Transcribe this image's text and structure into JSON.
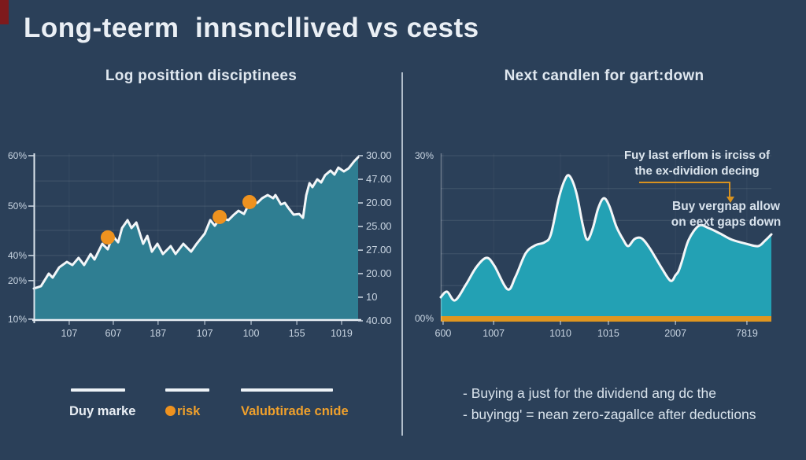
{
  "page": {
    "title": "Long-teerm  innsncllived vs cests"
  },
  "colors": {
    "background": "#2b4059",
    "accent_orange": "#ee921f",
    "left_area_fill": "#2f7e92",
    "right_area_fill": "#23a1b4",
    "line_white": "#f3f6f8",
    "corner_mark_red": "#7e1a1c"
  },
  "left_panel": {
    "subtitle": "Log posittion disciptinees",
    "legend": [
      {
        "label": "Duy marke"
      },
      {
        "label": "risk"
      },
      {
        "label": "Valubtirade cnide"
      }
    ]
  },
  "right_panel": {
    "subtitle": "Next candlen for gart:down",
    "note1_line1": "Fuy last erflom is irciss of",
    "note1_line2": "the ex-dividion decing",
    "note2_line1": "Buy vergnap allow",
    "note2_line2": "on eext gaps down",
    "bullets": [
      "- Buying a just for the dividend ang dc the",
      "- buyingg' = nean zero-zagallce after deductions"
    ]
  },
  "chart_data": [
    {
      "type": "area",
      "title": "Log posittion disciptinees",
      "smooth": false,
      "fill": "#2f7e92",
      "stroke": "#f3f6f8",
      "marker_color": "#ee921f",
      "legend_position": "bottom",
      "grid": true,
      "y_ticks_left": [
        {
          "label": "60%",
          "pos": 0.014
        },
        {
          "label": "50%",
          "pos": 0.315
        },
        {
          "label": "40%",
          "pos": 0.61
        },
        {
          "label": "20%",
          "pos": 0.76
        },
        {
          "label": "10%",
          "pos": 0.99
        }
      ],
      "y_ticks_right": [
        {
          "label": "30.00",
          "pos": 0.014
        },
        {
          "label": "47.00",
          "pos": 0.155
        },
        {
          "label": "20.00",
          "pos": 0.296
        },
        {
          "label": "25.00",
          "pos": 0.437
        },
        {
          "label": "27.00",
          "pos": 0.578
        },
        {
          "label": "20.00",
          "pos": 0.718
        },
        {
          "label": "10",
          "pos": 0.859
        },
        {
          "label": "40.00",
          "pos": 1.0
        }
      ],
      "x_ticks": [
        {
          "label": "107",
          "pos": 0.109
        },
        {
          "label": "607",
          "pos": 0.245
        },
        {
          "label": "187",
          "pos": 0.383
        },
        {
          "label": "107",
          "pos": 0.527
        },
        {
          "label": "100",
          "pos": 0.67
        },
        {
          "label": "155",
          "pos": 0.811
        },
        {
          "label": "1019",
          "pos": 0.949
        }
      ],
      "y_grid": [
        0.014,
        0.165,
        0.315,
        0.46,
        0.61,
        0.76,
        0.88
      ],
      "axes": {
        "left": "strong",
        "bottom": "strong",
        "right_ticks": true
      },
      "points": [
        [
          0.0,
          0.807
        ],
        [
          0.022,
          0.793
        ],
        [
          0.046,
          0.718
        ],
        [
          0.058,
          0.742
        ],
        [
          0.078,
          0.681
        ],
        [
          0.102,
          0.648
        ],
        [
          0.119,
          0.667
        ],
        [
          0.138,
          0.624
        ],
        [
          0.155,
          0.667
        ],
        [
          0.175,
          0.601
        ],
        [
          0.187,
          0.634
        ],
        [
          0.211,
          0.54
        ],
        [
          0.228,
          0.573
        ],
        [
          0.243,
          0.493
        ],
        [
          0.26,
          0.531
        ],
        [
          0.272,
          0.446
        ],
        [
          0.289,
          0.399
        ],
        [
          0.301,
          0.446
        ],
        [
          0.316,
          0.413
        ],
        [
          0.337,
          0.54
        ],
        [
          0.35,
          0.493
        ],
        [
          0.364,
          0.587
        ],
        [
          0.381,
          0.54
        ],
        [
          0.398,
          0.601
        ],
        [
          0.422,
          0.554
        ],
        [
          0.437,
          0.601
        ],
        [
          0.461,
          0.54
        ],
        [
          0.485,
          0.587
        ],
        [
          0.502,
          0.54
        ],
        [
          0.527,
          0.479
        ],
        [
          0.544,
          0.399
        ],
        [
          0.558,
          0.432
        ],
        [
          0.575,
          0.385
        ],
        [
          0.6,
          0.399
        ],
        [
          0.617,
          0.366
        ],
        [
          0.631,
          0.343
        ],
        [
          0.648,
          0.362
        ],
        [
          0.665,
          0.296
        ],
        [
          0.689,
          0.296
        ],
        [
          0.704,
          0.268
        ],
        [
          0.721,
          0.249
        ],
        [
          0.738,
          0.268
        ],
        [
          0.745,
          0.249
        ],
        [
          0.762,
          0.305
        ],
        [
          0.774,
          0.296
        ],
        [
          0.786,
          0.329
        ],
        [
          0.801,
          0.366
        ],
        [
          0.818,
          0.362
        ],
        [
          0.83,
          0.385
        ],
        [
          0.84,
          0.25
        ],
        [
          0.85,
          0.178
        ],
        [
          0.859,
          0.202
        ],
        [
          0.874,
          0.155
        ],
        [
          0.886,
          0.174
        ],
        [
          0.898,
          0.131
        ],
        [
          0.915,
          0.103
        ],
        [
          0.927,
          0.127
        ],
        [
          0.939,
          0.085
        ],
        [
          0.956,
          0.108
        ],
        [
          0.971,
          0.089
        ],
        [
          0.988,
          0.047
        ],
        [
          1.0,
          0.023
        ]
      ],
      "markers": [
        [
          0.228,
          0.502
        ],
        [
          0.573,
          0.38
        ],
        [
          0.665,
          0.291
        ]
      ],
      "marker_radius": 9
    },
    {
      "type": "area",
      "title": "Next candlen for gart:down",
      "smooth": true,
      "fill": "#23a1b4",
      "stroke": "#f3f6f8",
      "grid": true,
      "y_ticks_left": [
        {
          "label": "30%",
          "pos": 0.014
        },
        {
          "label": "00%",
          "pos": 0.985
        }
      ],
      "x_ticks": [
        {
          "label": "600",
          "pos": 0.007
        },
        {
          "label": "1007",
          "pos": 0.16
        },
        {
          "label": "1010",
          "pos": 0.362
        },
        {
          "label": "1015",
          "pos": 0.507
        },
        {
          "label": "2007",
          "pos": 0.71
        },
        {
          "label": "7819",
          "pos": 0.926
        }
      ],
      "y_grid": [
        0.014,
        0.21,
        0.4,
        0.6,
        0.79
      ],
      "axes": {
        "left": "faint"
      },
      "strip": {
        "color": "#e0961f",
        "pos": 0.972,
        "height": 7
      },
      "points": [
        [
          0.0,
          0.859
        ],
        [
          0.019,
          0.826
        ],
        [
          0.043,
          0.878
        ],
        [
          0.076,
          0.784
        ],
        [
          0.107,
          0.681
        ],
        [
          0.138,
          0.624
        ],
        [
          0.162,
          0.671
        ],
        [
          0.202,
          0.812
        ],
        [
          0.226,
          0.737
        ],
        [
          0.257,
          0.596
        ],
        [
          0.286,
          0.549
        ],
        [
          0.314,
          0.531
        ],
        [
          0.333,
          0.484
        ],
        [
          0.357,
          0.268
        ],
        [
          0.376,
          0.155
        ],
        [
          0.39,
          0.136
        ],
        [
          0.41,
          0.235
        ],
        [
          0.429,
          0.423
        ],
        [
          0.443,
          0.516
        ],
        [
          0.46,
          0.446
        ],
        [
          0.476,
          0.329
        ],
        [
          0.493,
          0.268
        ],
        [
          0.51,
          0.315
        ],
        [
          0.531,
          0.437
        ],
        [
          0.552,
          0.516
        ],
        [
          0.567,
          0.554
        ],
        [
          0.586,
          0.512
        ],
        [
          0.607,
          0.507
        ],
        [
          0.631,
          0.563
        ],
        [
          0.667,
          0.681
        ],
        [
          0.695,
          0.761
        ],
        [
          0.71,
          0.728
        ],
        [
          0.719,
          0.704
        ],
        [
          0.729,
          0.648
        ],
        [
          0.75,
          0.516
        ],
        [
          0.781,
          0.432
        ],
        [
          0.81,
          0.446
        ],
        [
          0.845,
          0.479
        ],
        [
          0.881,
          0.516
        ],
        [
          0.924,
          0.54
        ],
        [
          0.96,
          0.554
        ],
        [
          0.981,
          0.521
        ],
        [
          1.0,
          0.484
        ]
      ]
    }
  ]
}
